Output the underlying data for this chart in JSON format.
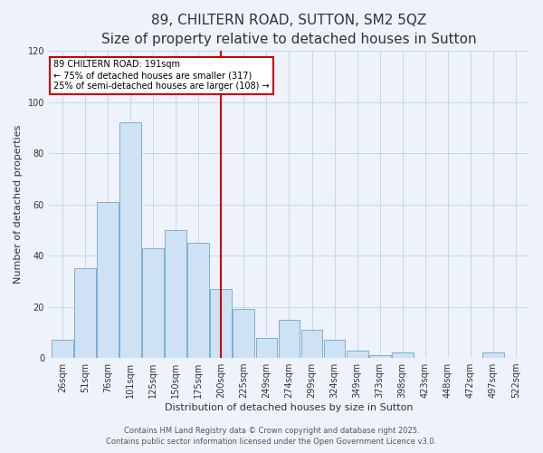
{
  "title": "89, CHILTERN ROAD, SUTTON, SM2 5QZ",
  "subtitle": "Size of property relative to detached houses in Sutton",
  "xlabel": "Distribution of detached houses by size in Sutton",
  "ylabel": "Number of detached properties",
  "bar_labels": [
    "26sqm",
    "51sqm",
    "76sqm",
    "101sqm",
    "125sqm",
    "150sqm",
    "175sqm",
    "200sqm",
    "225sqm",
    "249sqm",
    "274sqm",
    "299sqm",
    "324sqm",
    "349sqm",
    "373sqm",
    "398sqm",
    "423sqm",
    "448sqm",
    "472sqm",
    "497sqm",
    "522sqm"
  ],
  "bar_heights": [
    7,
    35,
    61,
    92,
    43,
    50,
    45,
    27,
    19,
    8,
    15,
    11,
    7,
    3,
    1,
    2,
    0,
    0,
    0,
    2,
    0
  ],
  "bar_color": "#cfe2f3",
  "bar_edge_color": "#7bafd4",
  "vline_x": 7.0,
  "vline_color": "#cc0000",
  "ylim": [
    0,
    120
  ],
  "yticks": [
    0,
    20,
    40,
    60,
    80,
    100,
    120
  ],
  "annotation_text": "89 CHILTERN ROAD: 191sqm\n← 75% of detached houses are smaller (317)\n25% of semi-detached houses are larger (108) →",
  "annotation_box_color": "#ffffff",
  "annotation_box_edge": "#cc0000",
  "footer1": "Contains HM Land Registry data © Crown copyright and database right 2025.",
  "footer2": "Contains public sector information licensed under the Open Government Licence v3.0.",
  "bg_color": "#eef2fb",
  "plot_bg_color": "#eef2fb",
  "title_fontsize": 11,
  "subtitle_fontsize": 9,
  "axis_label_fontsize": 8,
  "tick_fontsize": 7,
  "footer_fontsize": 6
}
